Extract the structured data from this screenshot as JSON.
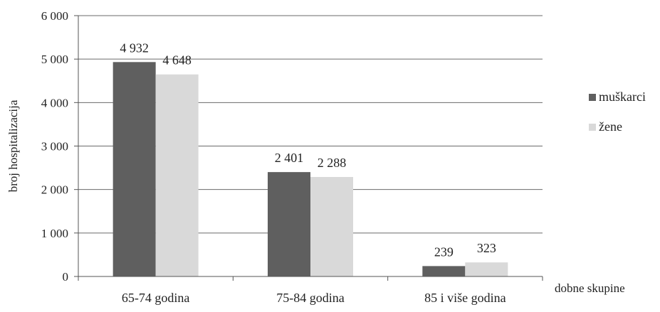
{
  "chart_data": {
    "type": "bar",
    "title": "",
    "xlabel": "dobne skupine",
    "ylabel": "broj hospitalizacija",
    "categories": [
      "65-74 godina",
      "75-84 godina",
      "85 i više godina"
    ],
    "series": [
      {
        "name": "muškarci",
        "values": [
          4932,
          2401,
          239
        ],
        "labels": [
          "4 932",
          "2 401",
          "239"
        ],
        "color": "#5f5f5f"
      },
      {
        "name": "žene",
        "values": [
          4648,
          2288,
          323
        ],
        "labels": [
          "4 648",
          "2 288",
          "323"
        ],
        "color": "#d9d9d9"
      }
    ],
    "ylim": [
      0,
      6000
    ],
    "yticks": [
      0,
      1000,
      2000,
      3000,
      4000,
      5000,
      6000
    ],
    "ytick_labels": [
      "0",
      "1 000",
      "2 000",
      "3 000",
      "4 000",
      "5 000",
      "6 000"
    ],
    "grid": true,
    "legend_position": "right"
  }
}
